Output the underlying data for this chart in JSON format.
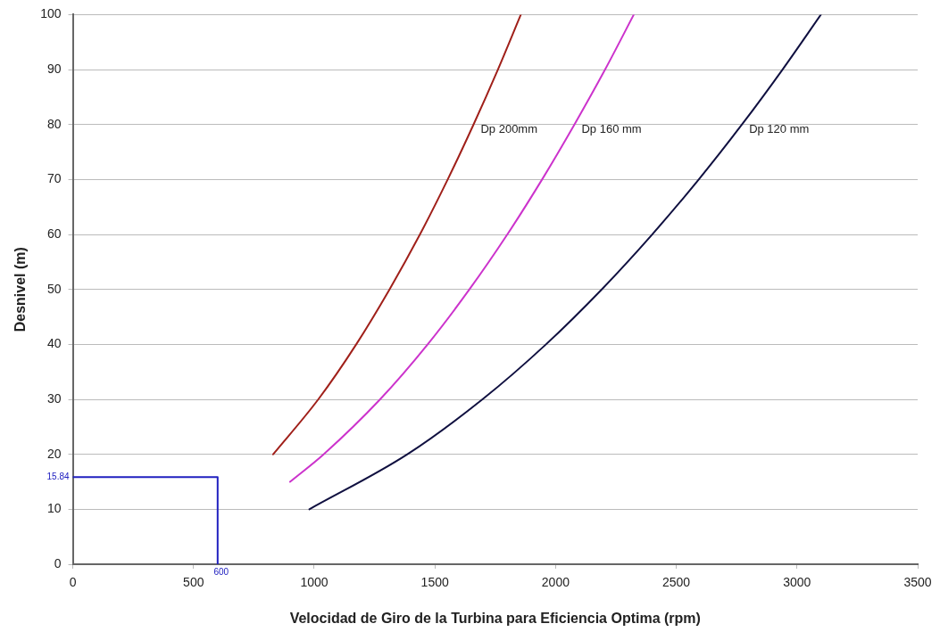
{
  "chart_data": {
    "type": "line",
    "xlabel": "Velocidad de Giro de la Turbina para Eficiencia Optima (rpm)",
    "ylabel": "Desnivel (m)",
    "xlim": [
      0,
      3500
    ],
    "xticks": [
      0,
      500,
      1000,
      1500,
      2000,
      2500,
      3000,
      3500
    ],
    "ylim": [
      0,
      100
    ],
    "yticks": [
      0,
      10,
      20,
      30,
      40,
      50,
      60,
      70,
      80,
      90,
      100
    ],
    "grid": "y",
    "marker": "none",
    "line_style": "solid",
    "legend": false,
    "series": [
      {
        "name": "Dp 200mm",
        "color": "#a0201a",
        "x": [
          830,
          1017,
          1174,
          1312,
          1438,
          1553,
          1660,
          1761,
          1856
        ],
        "values": [
          20,
          30,
          40,
          50,
          60,
          70,
          80,
          90,
          100
        ]
      },
      {
        "name": "Dp 160 mm",
        "color": "#cc33cc",
        "x": [
          900,
          1039,
          1273,
          1470,
          1643,
          1800,
          1944,
          2078,
          2205,
          2324
        ],
        "values": [
          15,
          20,
          30,
          40,
          50,
          60,
          70,
          80,
          90,
          100
        ]
      },
      {
        "name": "Dp 120 mm",
        "color": "#101040",
        "x": [
          980,
          1386,
          1697,
          1960,
          2191,
          2400,
          2593,
          2772,
          2940,
          3099
        ],
        "values": [
          10,
          20,
          30,
          40,
          50,
          60,
          70,
          80,
          90,
          100
        ]
      },
      {
        "color": "#2020c0",
        "x": [
          0,
          600,
          600
        ],
        "values": [
          15.84,
          15.84,
          0
        ]
      }
    ],
    "annotations": [
      {
        "text": "15.84",
        "x": 0,
        "y": 15.84
      },
      {
        "text": "600",
        "x": 600,
        "y": 0
      }
    ]
  }
}
